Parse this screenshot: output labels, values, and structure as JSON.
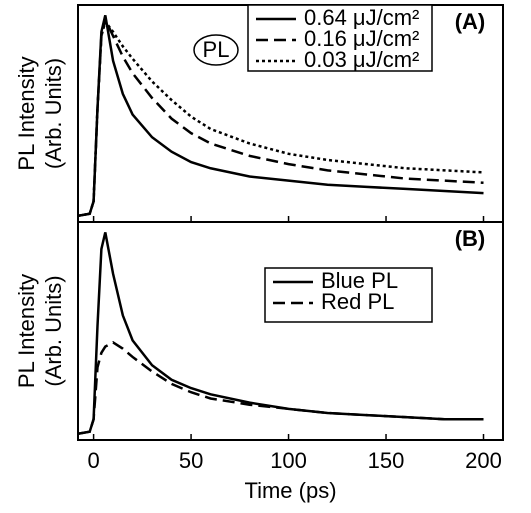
{
  "chart_data": [
    {
      "type": "line",
      "panel_label": "(A)",
      "annotation": "PL",
      "ylabel": [
        "PL Intensity",
        "(Arb. Units)"
      ],
      "x": [
        -8,
        -2,
        0,
        2,
        4,
        6,
        10,
        15,
        20,
        30,
        40,
        50,
        60,
        80,
        100,
        120,
        140,
        160,
        180,
        200
      ],
      "xlim": [
        -8,
        210
      ],
      "ylim": [
        0,
        1.05
      ],
      "series": [
        {
          "name": "0.64 μJ/cm²",
          "color": "#000000",
          "dash": "solid",
          "values": [
            0.03,
            0.04,
            0.1,
            0.55,
            0.92,
            1.0,
            0.78,
            0.62,
            0.52,
            0.41,
            0.34,
            0.29,
            0.26,
            0.22,
            0.2,
            0.18,
            0.17,
            0.16,
            0.15,
            0.14
          ]
        },
        {
          "name": "0.16 μJ/cm²",
          "color": "#000000",
          "dash": "dashed",
          "values": [
            0.03,
            0.04,
            0.1,
            0.55,
            0.9,
            0.98,
            0.9,
            0.8,
            0.72,
            0.6,
            0.5,
            0.43,
            0.38,
            0.32,
            0.28,
            0.25,
            0.23,
            0.21,
            0.2,
            0.19
          ]
        },
        {
          "name": "0.03 μJ/cm²",
          "color": "#000000",
          "dash": "dotted",
          "values": [
            0.03,
            0.04,
            0.1,
            0.55,
            0.9,
            0.97,
            0.92,
            0.85,
            0.79,
            0.68,
            0.59,
            0.51,
            0.45,
            0.38,
            0.33,
            0.3,
            0.28,
            0.26,
            0.25,
            0.24
          ]
        }
      ]
    },
    {
      "type": "line",
      "panel_label": "(B)",
      "ylabel": [
        "PL Intensity",
        "(Arb. Units)"
      ],
      "xlabel": "Time (ps)",
      "x": [
        -8,
        -2,
        0,
        2,
        4,
        6,
        10,
        15,
        20,
        30,
        40,
        50,
        60,
        80,
        100,
        120,
        140,
        160,
        180,
        200
      ],
      "xlim": [
        -8,
        210
      ],
      "xticks": [
        0,
        50,
        100,
        150,
        200
      ],
      "ylim": [
        0,
        1.05
      ],
      "series": [
        {
          "name": "Blue PL",
          "color": "#000000",
          "dash": "solid",
          "values": [
            0.03,
            0.04,
            0.1,
            0.55,
            0.92,
            1.0,
            0.8,
            0.6,
            0.48,
            0.36,
            0.29,
            0.25,
            0.22,
            0.18,
            0.15,
            0.13,
            0.12,
            0.11,
            0.1,
            0.1
          ]
        },
        {
          "name": "Red PL",
          "color": "#000000",
          "dash": "dashed",
          "values": [
            0.03,
            0.04,
            0.1,
            0.35,
            0.42,
            0.45,
            0.47,
            0.44,
            0.4,
            0.33,
            0.27,
            0.23,
            0.2,
            0.17,
            0.15,
            0.13,
            0.12,
            0.11,
            0.1,
            0.1
          ]
        }
      ]
    }
  ]
}
